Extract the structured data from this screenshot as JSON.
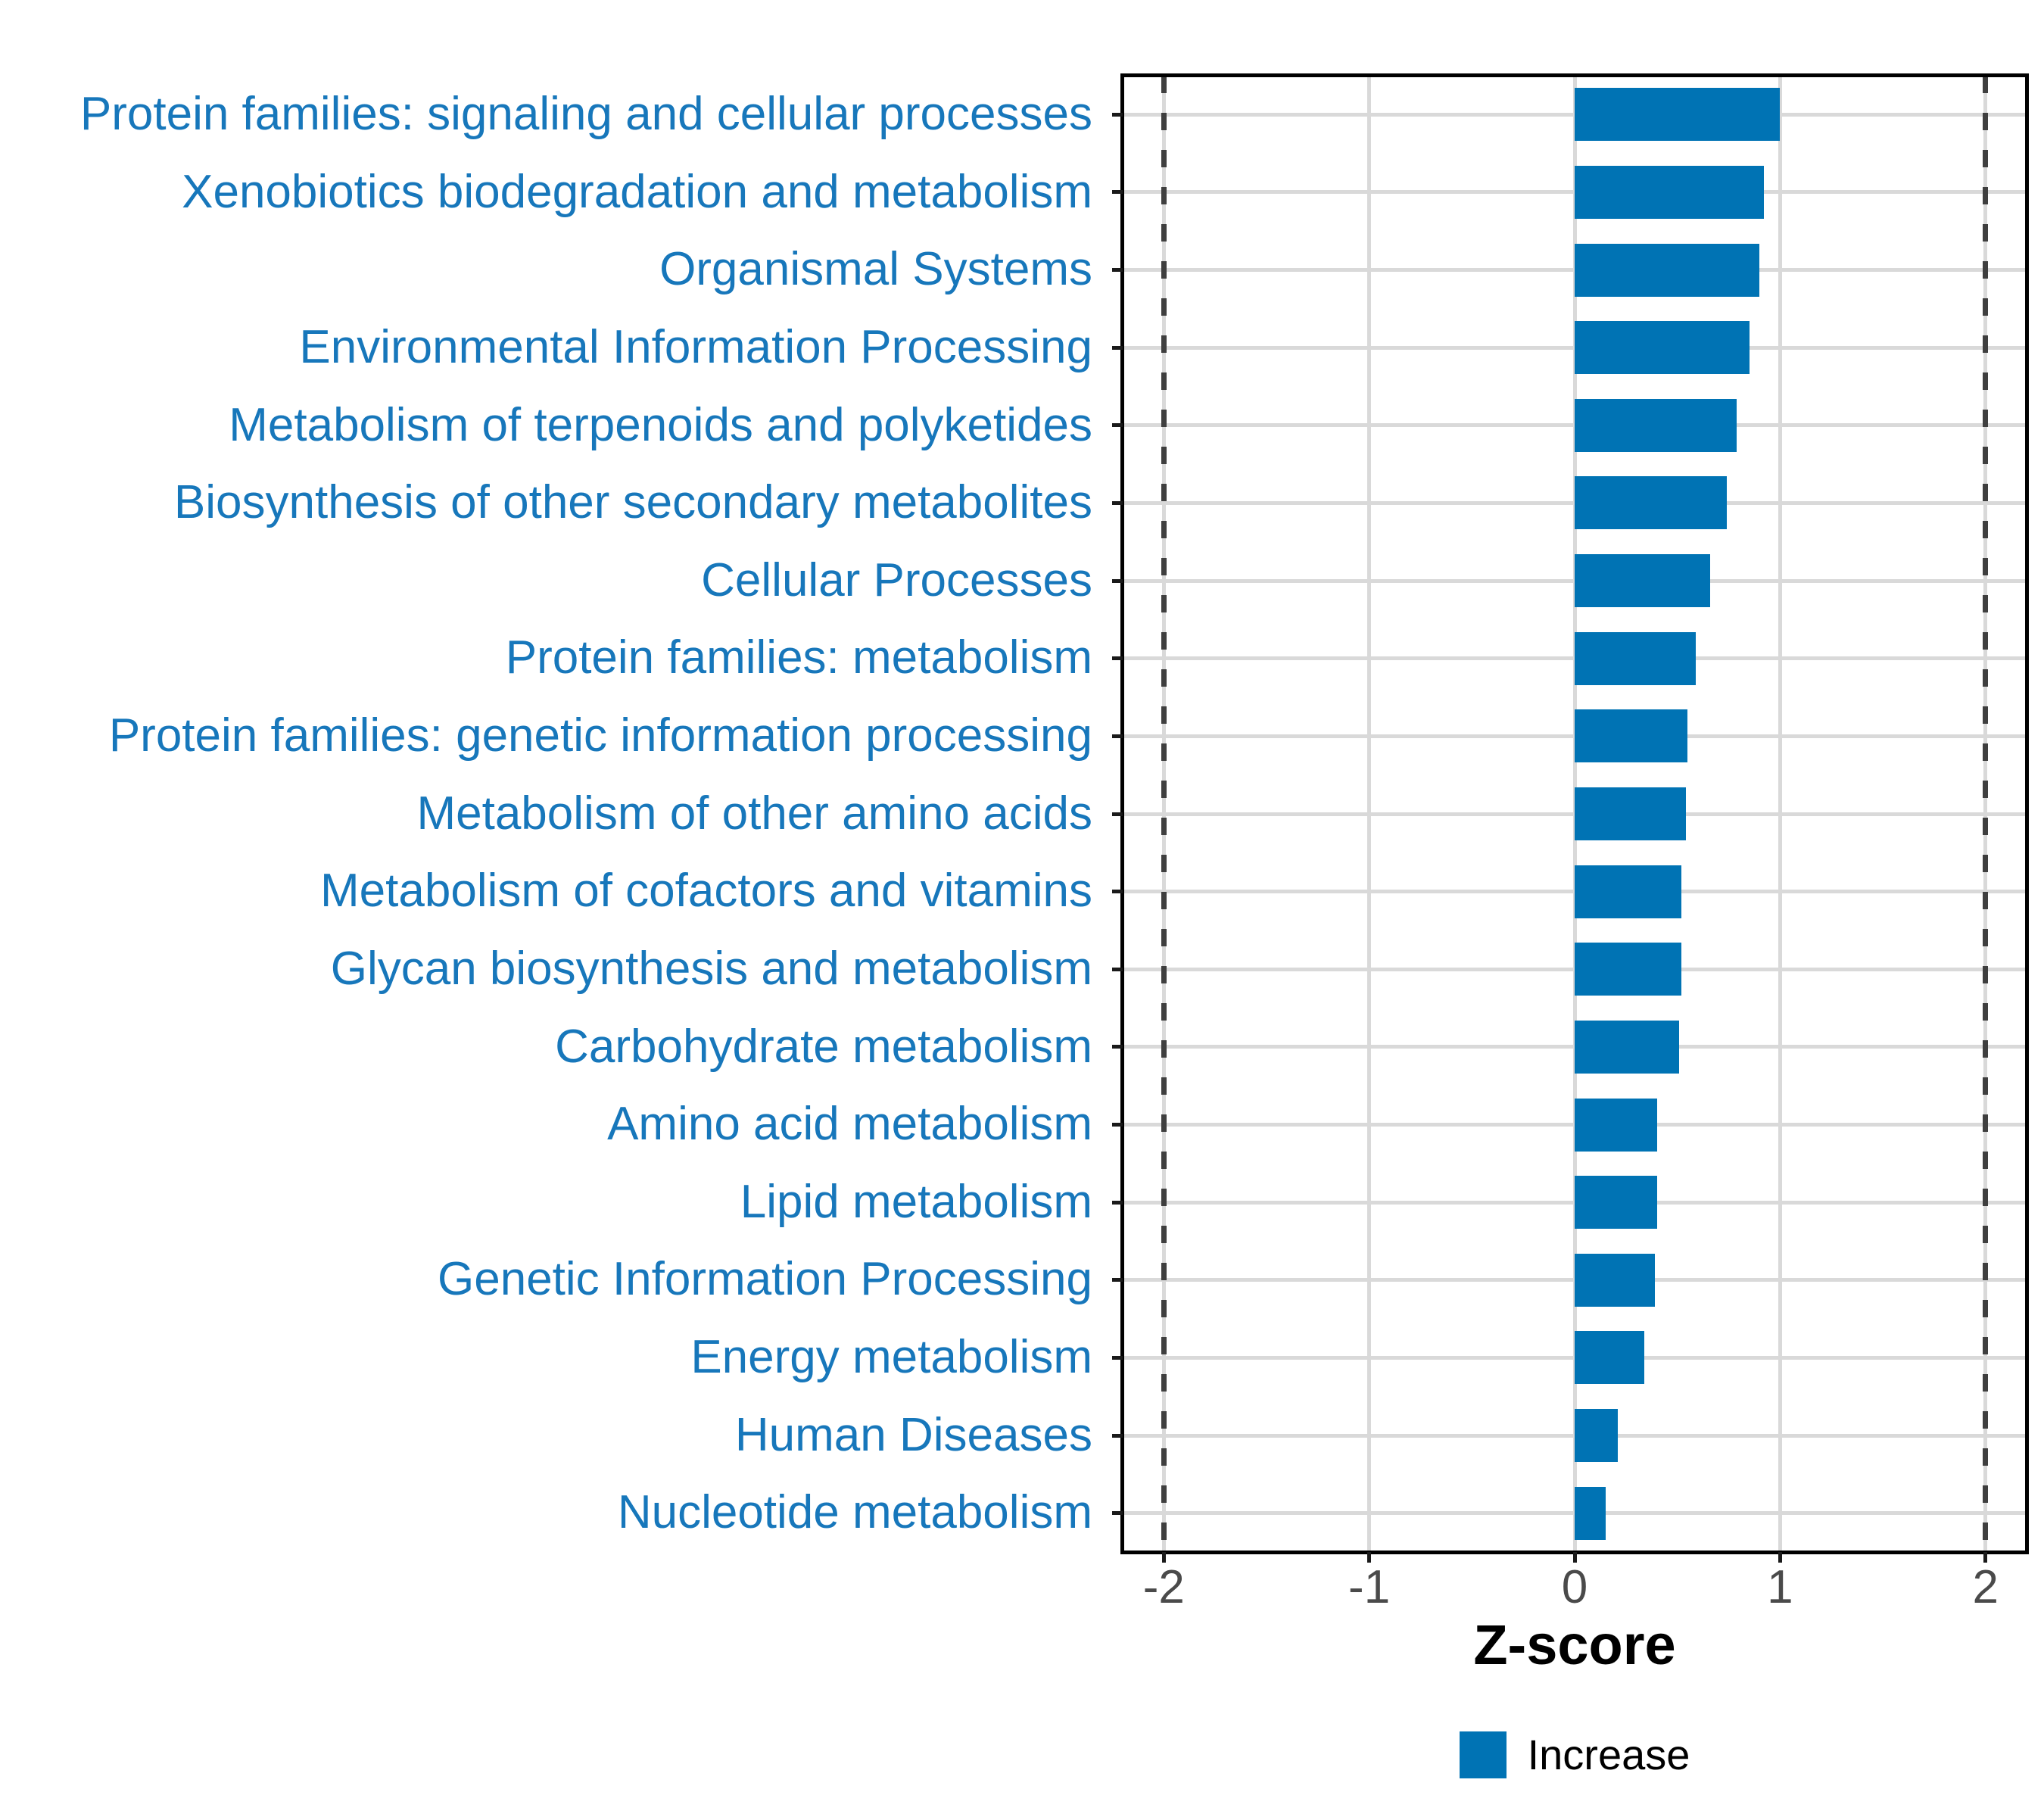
{
  "chart_data": {
    "type": "bar",
    "orientation": "horizontal",
    "title": "",
    "xlabel": "Z-score",
    "ylabel": "",
    "categories": [
      "Protein families: signaling and cellular processes",
      "Xenobiotics biodegradation and metabolism",
      "Organismal Systems",
      "Environmental Information Processing",
      "Metabolism of terpenoids and polyketides",
      "Biosynthesis of other secondary metabolites",
      "Cellular Processes",
      "Protein families: metabolism",
      "Protein families: genetic information processing",
      "Metabolism of other amino acids",
      "Metabolism of cofactors and vitamins",
      "Glycan biosynthesis and metabolism",
      "Carbohydrate metabolism",
      "Amino acid metabolism",
      "Lipid metabolism",
      "Genetic Information Processing",
      "Energy metabolism",
      "Human Diseases",
      "Nucleotide metabolism"
    ],
    "series": [
      {
        "name": "Increase",
        "values": [
          1.0,
          0.92,
          0.9,
          0.85,
          0.79,
          0.74,
          0.66,
          0.59,
          0.55,
          0.54,
          0.52,
          0.52,
          0.51,
          0.4,
          0.4,
          0.39,
          0.34,
          0.21,
          0.15
        ]
      }
    ],
    "xlim": [
      -2.2,
      2.2
    ],
    "x_ticks": [
      -2,
      -1,
      0,
      1,
      2
    ],
    "x_tick_labels": [
      "-2",
      "-1",
      "0",
      "1",
      "2"
    ],
    "reference_lines": [
      -2,
      2
    ],
    "grid": "on",
    "legend_position": "bottom",
    "legend_label": "Increase",
    "colors": {
      "bar": "#0073B4",
      "category_label": "#1777BB",
      "axis_tick_label": "#4A4A4A",
      "axis_title": "#000000",
      "grid_line": "#D9D9D9",
      "reference_line": "#3F3F3F",
      "panel_border": "#000000",
      "legend_text": "#000000"
    }
  }
}
